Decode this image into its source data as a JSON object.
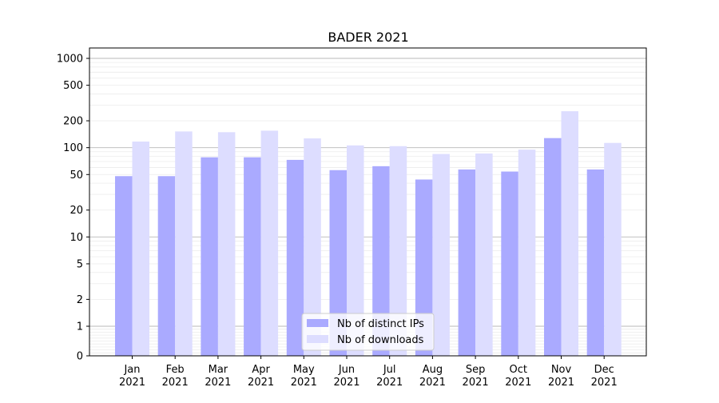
{
  "chart_data": {
    "type": "bar",
    "title": "BADER 2021",
    "xlabel": "",
    "ylabel": "",
    "y_scale": "symlog",
    "ylim": [
      0,
      1300
    ],
    "y_ticks": [
      0,
      1,
      2,
      5,
      10,
      20,
      50,
      100,
      200,
      500,
      1000
    ],
    "y_tick_labels": [
      "0",
      "1",
      "2",
      "5",
      "10",
      "20",
      "50",
      "100",
      "200",
      "500",
      "1000"
    ],
    "categories": [
      {
        "month": "Jan",
        "year": "2021"
      },
      {
        "month": "Feb",
        "year": "2021"
      },
      {
        "month": "Mar",
        "year": "2021"
      },
      {
        "month": "Apr",
        "year": "2021"
      },
      {
        "month": "May",
        "year": "2021"
      },
      {
        "month": "Jun",
        "year": "2021"
      },
      {
        "month": "Jul",
        "year": "2021"
      },
      {
        "month": "Aug",
        "year": "2021"
      },
      {
        "month": "Sep",
        "year": "2021"
      },
      {
        "month": "Oct",
        "year": "2021"
      },
      {
        "month": "Nov",
        "year": "2021"
      },
      {
        "month": "Dec",
        "year": "2021"
      }
    ],
    "series": [
      {
        "name": "Nb of distinct IPs",
        "color": "#aaaaff",
        "values": [
          48,
          48,
          78,
          78,
          73,
          56,
          62,
          44,
          57,
          54,
          128,
          57
        ]
      },
      {
        "name": "Nb of downloads",
        "color": "#ddddff",
        "values": [
          117,
          152,
          149,
          155,
          127,
          106,
          104,
          85,
          86,
          95,
          256,
          113
        ]
      }
    ],
    "grid": true,
    "legend_position": "bottom-center"
  }
}
